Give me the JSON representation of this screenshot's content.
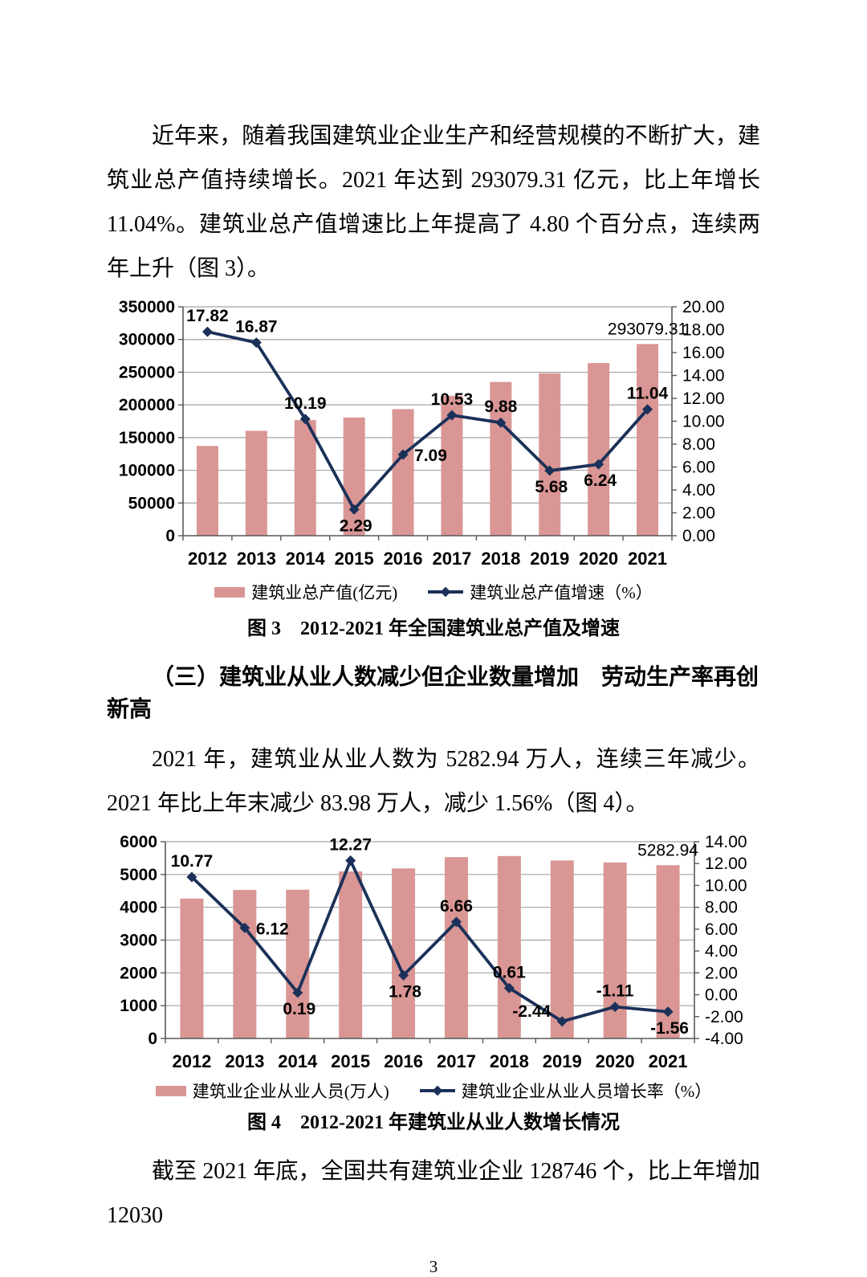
{
  "page": {
    "paragraph1": "近年来，随着我国建筑业企业生产和经营规模的不断扩大，建筑业总产值持续增长。2021 年达到 293079.31 亿元，比上年增长 11.04%。建筑业总产值增速比上年提高了 4.80 个百分点，连续两年上升（图 3）。",
    "section_heading": "（三）建筑业从业人数减少但企业数量增加　劳动生产率再创新高",
    "paragraph2": "2021 年，建筑业从业人数为 5282.94 万人，连续三年减少。2021 年比上年末减少 83.98 万人，减少 1.56%（图 4）。",
    "paragraph3": "截至 2021 年底，全国共有建筑业企业 128746 个，比上年增加 12030",
    "page_number": "3"
  },
  "chart_data": [
    {
      "type": "bar",
      "subtype": "bar+line combo, dual axis",
      "caption": "图 3　2012-2021 年全国建筑业总产值及增速",
      "categories": [
        "2012",
        "2013",
        "2014",
        "2015",
        "2016",
        "2017",
        "2018",
        "2019",
        "2020",
        "2021"
      ],
      "left_axis": {
        "min": 0,
        "max": 350000,
        "step": 50000,
        "decimals": 0
      },
      "right_axis": {
        "min": 0,
        "max": 20,
        "step": 2,
        "decimals": 2
      },
      "grid": "horizontal",
      "legend_position": "bottom",
      "series": [
        {
          "name": "建筑业总产值(亿元)",
          "type": "bar",
          "axis": "left",
          "color": "#D99694",
          "values": [
            137218,
            160366,
            176713,
            180757,
            193567,
            213944,
            235086,
            248446,
            263947,
            293079.31
          ]
        },
        {
          "name": "建筑业总产值增速（%）",
          "type": "line",
          "axis": "right",
          "color": "#1B3159",
          "values": [
            17.82,
            16.87,
            10.19,
            2.29,
            7.09,
            10.53,
            9.88,
            5.68,
            6.24,
            11.04
          ],
          "label_pos": [
            "above",
            "above",
            "above",
            "below",
            "right",
            "above",
            "above",
            "below",
            "below",
            "above"
          ]
        }
      ],
      "bar_annotation": {
        "index": 9,
        "text": "293079.31"
      }
    },
    {
      "type": "bar",
      "subtype": "bar+line combo, dual axis",
      "caption": "图 4　2012-2021 年建筑业从业人数增长情况",
      "categories": [
        "2012",
        "2013",
        "2014",
        "2015",
        "2016",
        "2017",
        "2018",
        "2019",
        "2020",
        "2021"
      ],
      "left_axis": {
        "min": 0,
        "max": 6000,
        "step": 1000,
        "decimals": 0
      },
      "right_axis": {
        "min": -4,
        "max": 14,
        "step": 2,
        "decimals": 2
      },
      "grid": "horizontal",
      "legend_position": "bottom",
      "series": [
        {
          "name": "建筑业企业从业人员(万人)",
          "type": "bar",
          "axis": "left",
          "color": "#D99694",
          "values": [
            4267,
            4528,
            4537,
            5094,
            5185,
            5530,
            5563,
            5427,
            5367,
            5282.94
          ]
        },
        {
          "name": "建筑业企业从业人员增长率（%）",
          "type": "line",
          "axis": "right",
          "color": "#1B3159",
          "values": [
            10.77,
            6.12,
            0.19,
            12.27,
            1.78,
            6.66,
            0.61,
            -2.44,
            -1.11,
            -1.56
          ],
          "label_pos": [
            "above",
            "right",
            "below",
            "above",
            "below",
            "above",
            "above",
            "left",
            "above",
            "below"
          ]
        }
      ],
      "bar_annotation": {
        "index": 9,
        "text": "5282.94"
      }
    }
  ]
}
